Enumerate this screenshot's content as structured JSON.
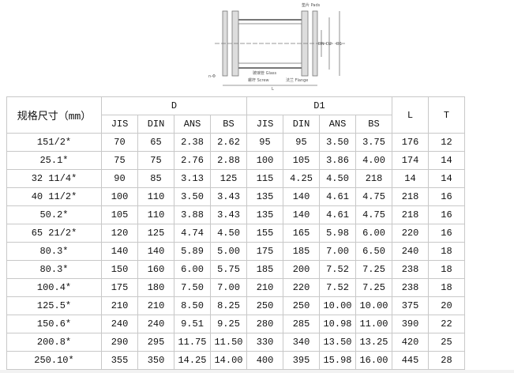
{
  "drawing": {
    "labels": {
      "pads": "垫片 Pads",
      "glass": "玻璃管 Glass",
      "screw": "螺杆 Screw",
      "flange": "法兰 Flange",
      "dn": "DN",
      "d2": "D2",
      "d1": "D1",
      "l": "L",
      "holes": "n-Φ"
    }
  },
  "table": {
    "size_header": "规格尺寸（mm）",
    "group_d": "D",
    "group_d1": "D1",
    "col_l": "L",
    "col_t": "T",
    "sub_headers": [
      "JIS",
      "DIN",
      "ANS",
      "BS"
    ],
    "rows": [
      [
        "151/2*",
        "70",
        "65",
        "2.38",
        "2.62",
        "95",
        "95",
        "3.50",
        "3.75",
        "176",
        "12"
      ],
      [
        "25.1*",
        "75",
        "75",
        "2.76",
        "2.88",
        "100",
        "105",
        "3.86",
        "4.00",
        "174",
        "14"
      ],
      [
        "32 11/4*",
        "90",
        "85",
        "3.13",
        "125",
        "115",
        "4.25",
        "4.50",
        "218",
        "14",
        "14"
      ],
      [
        "40 11/2*",
        "100",
        "110",
        "3.50",
        "3.43",
        "135",
        "140",
        "4.61",
        "4.75",
        "218",
        "16"
      ],
      [
        "50.2*",
        "105",
        "110",
        "3.88",
        "3.43",
        "135",
        "140",
        "4.61",
        "4.75",
        "218",
        "16"
      ],
      [
        "65 21/2*",
        "120",
        "125",
        "4.74",
        "4.50",
        "155",
        "165",
        "5.98",
        "6.00",
        "220",
        "16"
      ],
      [
        "80.3*",
        "140",
        "140",
        "5.89",
        "5.00",
        "175",
        "185",
        "7.00",
        "6.50",
        "240",
        "18"
      ],
      [
        "80.3*",
        "150",
        "160",
        "6.00",
        "5.75",
        "185",
        "200",
        "7.52",
        "7.25",
        "238",
        "18"
      ],
      [
        "100.4*",
        "175",
        "180",
        "7.50",
        "7.00",
        "210",
        "220",
        "7.52",
        "7.25",
        "238",
        "18"
      ],
      [
        "125.5*",
        "210",
        "210",
        "8.50",
        "8.25",
        "250",
        "250",
        "10.00",
        "10.00",
        "375",
        "20"
      ],
      [
        "150.6*",
        "240",
        "240",
        "9.51",
        "9.25",
        "280",
        "285",
        "10.98",
        "11.00",
        "390",
        "22"
      ],
      [
        "200.8*",
        "290",
        "295",
        "11.75",
        "11.50",
        "330",
        "340",
        "13.50",
        "13.25",
        "420",
        "25"
      ],
      [
        "250.10*",
        "355",
        "350",
        "14.25",
        "14.00",
        "400",
        "395",
        "15.98",
        "16.00",
        "445",
        "28"
      ]
    ]
  }
}
